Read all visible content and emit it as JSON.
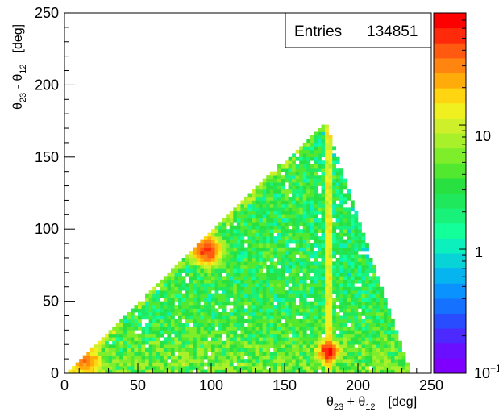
{
  "chart_data": {
    "type": "heatmap",
    "title": "",
    "xlabel": {
      "theta": "θ",
      "sub1": "23",
      "op": " + ",
      "theta2": "θ",
      "sub2": "12",
      "unit": "[deg]"
    },
    "ylabel": {
      "theta": "θ",
      "sub1": "23",
      "op": " - ",
      "theta2": "θ",
      "sub2": "12",
      "unit": "[deg]"
    },
    "xlim": [
      0,
      250
    ],
    "ylim": [
      0,
      250
    ],
    "x_ticks": [
      "0",
      "50",
      "100",
      "150",
      "200",
      "250"
    ],
    "y_ticks": [
      "0",
      "50",
      "100",
      "150",
      "200",
      "250"
    ],
    "stats": {
      "label": "Entries",
      "value": "134851"
    },
    "colorbar": {
      "scale": "log",
      "range": [
        0.1,
        80
      ],
      "labels": [
        {
          "text": "10",
          "value": 10
        },
        {
          "text": "1",
          "value": 1
        },
        {
          "text": "10",
          "sup": "−1",
          "value": 0.1
        }
      ],
      "colors": [
        "#7f00ff",
        "#6a0fff",
        "#4b29ff",
        "#2a4cff",
        "#1571ff",
        "#0a93ff",
        "#06b4f0",
        "#08d4d8",
        "#0bf0bc",
        "#12ff9a",
        "#19f27a",
        "#1fe85c",
        "#28e040",
        "#52e830",
        "#7eee2a",
        "#a8f02a",
        "#cef02a",
        "#f0f020",
        "#ffd410",
        "#ffab0a",
        "#ff8410",
        "#ff5a10",
        "#ff2a0a",
        "#ff0000"
      ]
    },
    "features": {
      "support_vertices": [
        [
          0,
          0
        ],
        [
          178,
          175
        ],
        [
          236,
          0
        ]
      ],
      "vertical_band": {
        "x": 180,
        "level": 12
      },
      "hot_spots": [
        {
          "x": 97,
          "y": 85,
          "level": 50
        },
        {
          "x": 15,
          "y": 8,
          "level": 25
        },
        {
          "x": 180,
          "y": 15,
          "level": 60
        }
      ],
      "mean_level": 3,
      "edge_level": 6
    }
  }
}
